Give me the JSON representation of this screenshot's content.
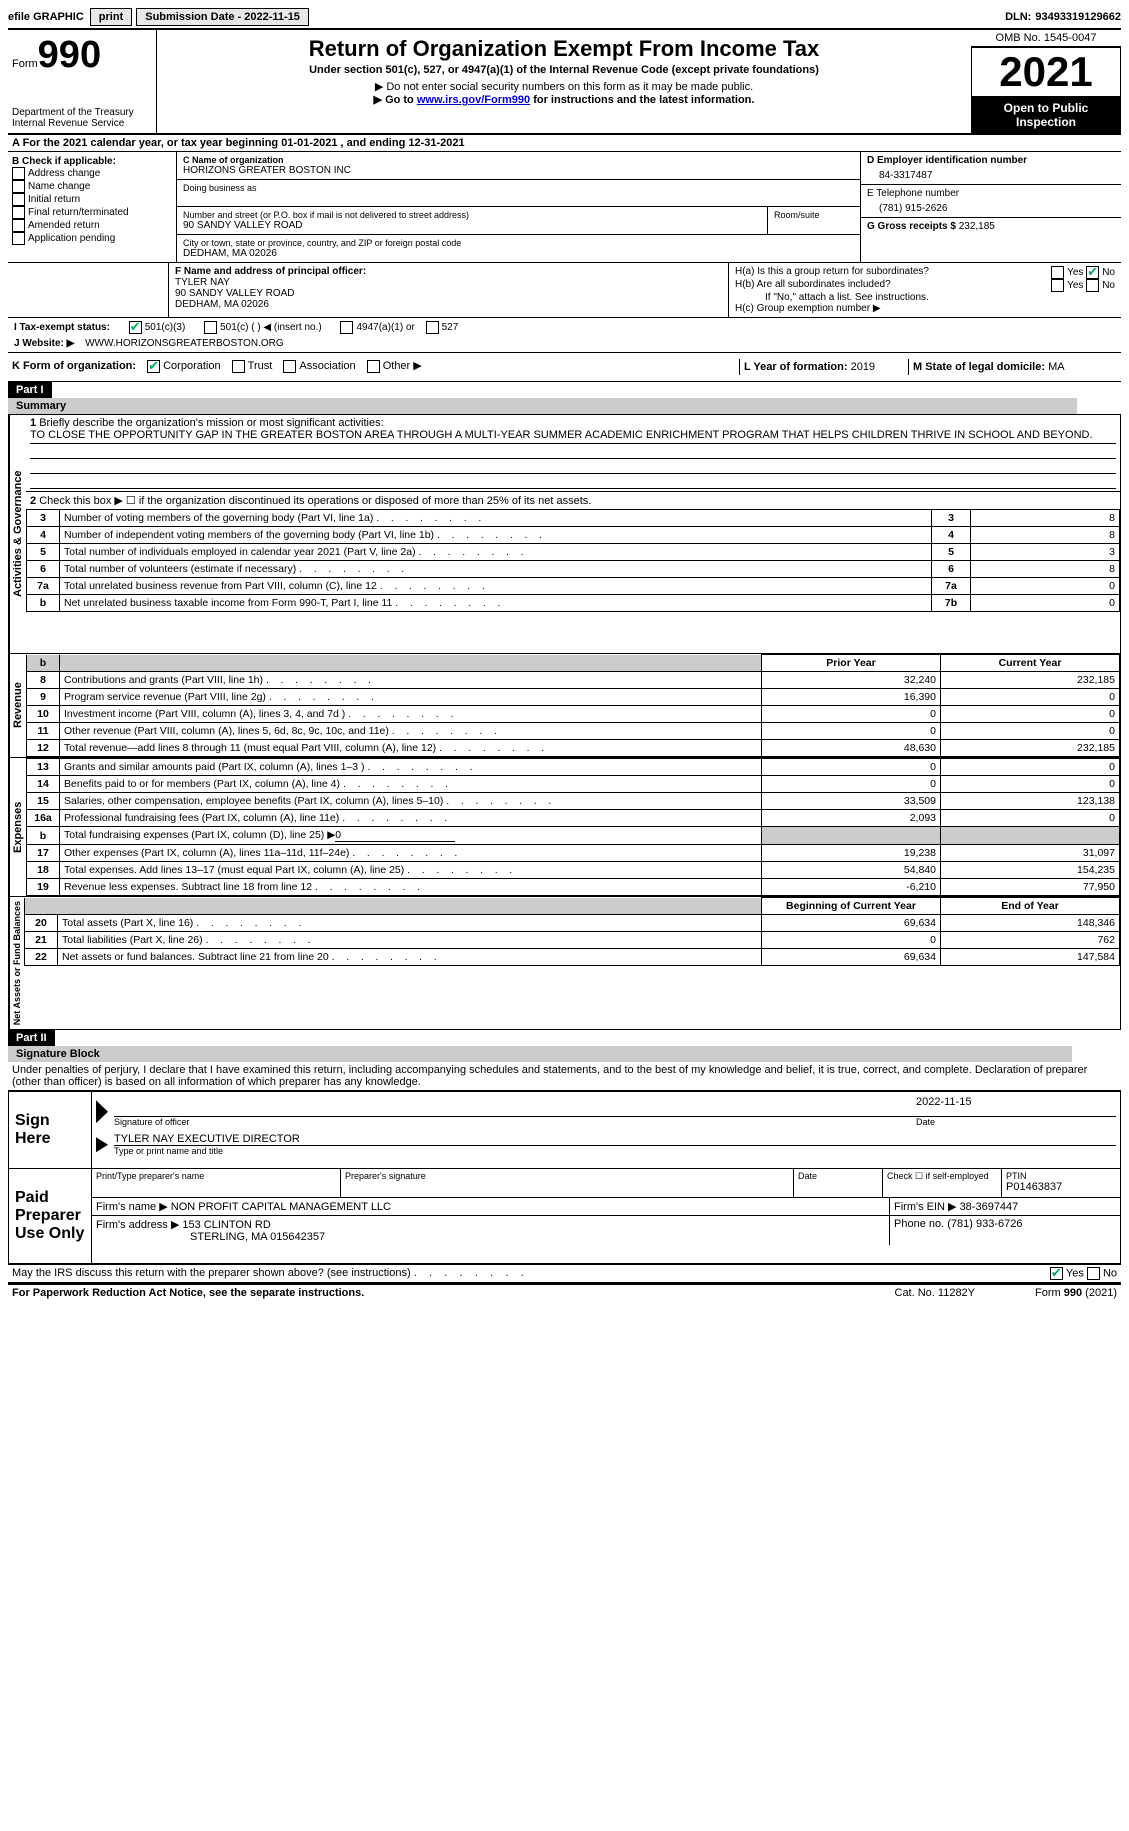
{
  "topbar": {
    "efile": "efile GRAPHIC",
    "print": "print",
    "submission": "Submission Date - 2022-11-15",
    "dln_label": "DLN:",
    "dln": "93493319129662"
  },
  "header": {
    "form": "Form",
    "form_no": "990",
    "dept": "Department of the Treasury Internal Revenue Service",
    "title": "Return of Organization Exempt From Income Tax",
    "subtitle": "Under section 501(c), 527, or 4947(a)(1) of the Internal Revenue Code (except private foundations)",
    "note1": "▶ Do not enter social security numbers on this form as it may be made public.",
    "note2_pre": "▶ Go to ",
    "note2_link": "www.irs.gov/Form990",
    "note2_post": " for instructions and the latest information.",
    "omb": "OMB No. 1545-0047",
    "year": "2021",
    "inspection": "Open to Public Inspection"
  },
  "section_a": "A For the 2021 calendar year, or tax year beginning 01-01-2021   , and ending 12-31-2021",
  "section_b": {
    "label": "B Check if applicable:",
    "items": [
      "Address change",
      "Name change",
      "Initial return",
      "Final return/terminated",
      "Amended return",
      "Application pending"
    ]
  },
  "section_c": {
    "name_label": "C Name of organization",
    "name": "HORIZONS GREATER BOSTON INC",
    "dba_label": "Doing business as",
    "dba": "",
    "street_label": "Number and street (or P.O. box if mail is not delivered to street address)",
    "room_label": "Room/suite",
    "street": "90 SANDY VALLEY ROAD",
    "city_label": "City or town, state or province, country, and ZIP or foreign postal code",
    "city": "DEDHAM, MA  02026"
  },
  "section_d": {
    "label": "D Employer identification number",
    "value": "84-3317487"
  },
  "section_e": {
    "label": "E Telephone number",
    "value": "(781) 915-2626"
  },
  "section_g": {
    "label": "G Gross receipts $",
    "value": "232,185"
  },
  "section_f": {
    "label": "F Name and address of principal officer:",
    "name": "TYLER NAY",
    "addr1": "90 SANDY VALLEY ROAD",
    "addr2": "DEDHAM, MA  02026"
  },
  "section_h": {
    "ha": "H(a)  Is this a group return for subordinates?",
    "hb": "H(b)  Are all subordinates included?",
    "hb_note": "If \"No,\" attach a list. See instructions.",
    "hc": "H(c)  Group exemption number ▶",
    "yes": "Yes",
    "no": "No"
  },
  "section_i": {
    "label": "I   Tax-exempt status:",
    "opt1": "501(c)(3)",
    "opt2": "501(c) (  ) ◀ (insert no.)",
    "opt3": "4947(a)(1) or",
    "opt4": "527"
  },
  "section_j": {
    "label": "J   Website: ▶",
    "value": "WWW.HORIZONSGREATERBOSTON.ORG"
  },
  "section_k": {
    "label": "K Form of organization:",
    "opts": [
      "Corporation",
      "Trust",
      "Association",
      "Other ▶"
    ]
  },
  "section_l": {
    "label": "L Year of formation:",
    "value": "2019"
  },
  "section_m": {
    "label": "M State of legal domicile:",
    "value": "MA"
  },
  "part1": {
    "header": "Part I",
    "title": "Summary",
    "side_activities": "Activities & Governance",
    "side_revenue": "Revenue",
    "side_expenses": "Expenses",
    "side_net": "Net Assets or Fund Balances",
    "line1_label": "Briefly describe the organization's mission or most significant activities:",
    "line1_text": "TO CLOSE THE OPPORTUNITY GAP IN THE GREATER BOSTON AREA THROUGH A MULTI-YEAR SUMMER ACADEMIC ENRICHMENT PROGRAM THAT HELPS CHILDREN THRIVE IN SCHOOL AND BEYOND.",
    "line2": "Check this box ▶ ☐ if the organization discontinued its operations or disposed of more than 25% of its net assets.",
    "rows": [
      {
        "n": "3",
        "label": "Number of voting members of the governing body (Part VI, line 1a)",
        "box": "3",
        "val": "8"
      },
      {
        "n": "4",
        "label": "Number of independent voting members of the governing body (Part VI, line 1b)",
        "box": "4",
        "val": "8"
      },
      {
        "n": "5",
        "label": "Total number of individuals employed in calendar year 2021 (Part V, line 2a)",
        "box": "5",
        "val": "3"
      },
      {
        "n": "6",
        "label": "Total number of volunteers (estimate if necessary)",
        "box": "6",
        "val": "8"
      },
      {
        "n": "7a",
        "label": "Total unrelated business revenue from Part VIII, column (C), line 12",
        "box": "7a",
        "val": "0"
      },
      {
        "n": "b",
        "label": "Net unrelated business taxable income from Form 990-T, Part I, line 11",
        "box": "7b",
        "val": "0"
      }
    ],
    "prior_year": "Prior Year",
    "current_year": "Current Year",
    "rev_rows": [
      {
        "n": "8",
        "label": "Contributions and grants (Part VIII, line 1h)",
        "py": "32,240",
        "cy": "232,185"
      },
      {
        "n": "9",
        "label": "Program service revenue (Part VIII, line 2g)",
        "py": "16,390",
        "cy": "0"
      },
      {
        "n": "10",
        "label": "Investment income (Part VIII, column (A), lines 3, 4, and 7d )",
        "py": "0",
        "cy": "0"
      },
      {
        "n": "11",
        "label": "Other revenue (Part VIII, column (A), lines 5, 6d, 8c, 9c, 10c, and 11e)",
        "py": "0",
        "cy": "0"
      },
      {
        "n": "12",
        "label": "Total revenue—add lines 8 through 11 (must equal Part VIII, column (A), line 12)",
        "py": "48,630",
        "cy": "232,185"
      }
    ],
    "exp_rows": [
      {
        "n": "13",
        "label": "Grants and similar amounts paid (Part IX, column (A), lines 1–3 )",
        "py": "0",
        "cy": "0"
      },
      {
        "n": "14",
        "label": "Benefits paid to or for members (Part IX, column (A), line 4)",
        "py": "0",
        "cy": "0"
      },
      {
        "n": "15",
        "label": "Salaries, other compensation, employee benefits (Part IX, column (A), lines 5–10)",
        "py": "33,509",
        "cy": "123,138"
      },
      {
        "n": "16a",
        "label": "Professional fundraising fees (Part IX, column (A), line 11e)",
        "py": "2,093",
        "cy": "0"
      },
      {
        "n": "b",
        "label": "Total fundraising expenses (Part IX, column (D), line 25) ▶",
        "py": "shaded",
        "cy": "shaded",
        "extra": "0"
      },
      {
        "n": "17",
        "label": "Other expenses (Part IX, column (A), lines 11a–11d, 11f–24e)",
        "py": "19,238",
        "cy": "31,097"
      },
      {
        "n": "18",
        "label": "Total expenses. Add lines 13–17 (must equal Part IX, column (A), line 25)",
        "py": "54,840",
        "cy": "154,235"
      },
      {
        "n": "19",
        "label": "Revenue less expenses. Subtract line 18 from line 12",
        "py": "-6,210",
        "cy": "77,950"
      }
    ],
    "beg_year": "Beginning of Current Year",
    "end_year": "End of Year",
    "net_rows": [
      {
        "n": "20",
        "label": "Total assets (Part X, line 16)",
        "py": "69,634",
        "cy": "148,346"
      },
      {
        "n": "21",
        "label": "Total liabilities (Part X, line 26)",
        "py": "0",
        "cy": "762"
      },
      {
        "n": "22",
        "label": "Net assets or fund balances. Subtract line 21 from line 20",
        "py": "69,634",
        "cy": "147,584"
      }
    ]
  },
  "part2": {
    "header": "Part II",
    "title": "Signature Block",
    "declaration": "Under penalties of perjury, I declare that I have examined this return, including accompanying schedules and statements, and to the best of my knowledge and belief, it is true, correct, and complete. Declaration of preparer (other than officer) is based on all information of which preparer has any knowledge.",
    "sign_here": "Sign Here",
    "sig_officer": "Signature of officer",
    "sig_date": "2022-11-15",
    "date_label": "Date",
    "officer_name": "TYLER NAY  EXECUTIVE DIRECTOR",
    "type_name": "Type or print name and title",
    "paid_label": "Paid Preparer Use Only",
    "prep_name_label": "Print/Type preparer's name",
    "prep_sig_label": "Preparer's signature",
    "check_self": "Check ☐ if self-employed",
    "ptin_label": "PTIN",
    "ptin": "P01463837",
    "firm_name_label": "Firm's name    ▶",
    "firm_name": "NON PROFIT CAPITAL MANAGEMENT LLC",
    "firm_ein_label": "Firm's EIN ▶",
    "firm_ein": "38-3697447",
    "firm_addr_label": "Firm's address ▶",
    "firm_addr1": "153 CLINTON RD",
    "firm_addr2": "STERLING, MA  015642357",
    "phone_label": "Phone no.",
    "phone": "(781) 933-6726",
    "discuss": "May the IRS discuss this return with the preparer shown above? (see instructions)",
    "footer_left": "For Paperwork Reduction Act Notice, see the separate instructions.",
    "footer_mid": "Cat. No. 11282Y",
    "footer_right": "Form 990 (2021)"
  }
}
